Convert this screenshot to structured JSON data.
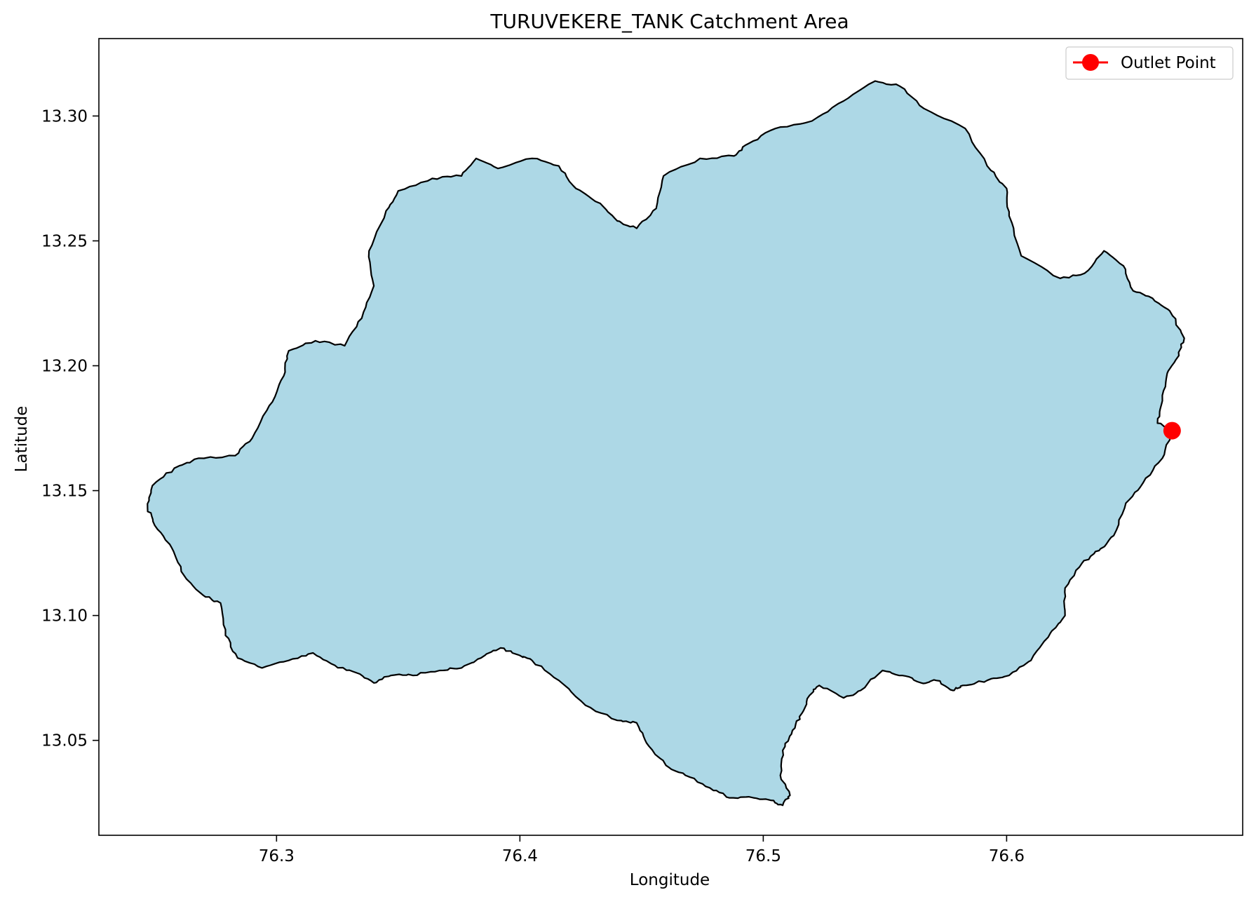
{
  "chart_data": {
    "type": "map",
    "title": "TURUVEKERE_TANK Catchment Area",
    "xlabel": "Longitude",
    "ylabel": "Latitude",
    "xlim": [
      76.227,
      76.697
    ],
    "ylim": [
      13.012,
      13.331
    ],
    "xticks": [
      76.3,
      76.4,
      76.5,
      76.6
    ],
    "xtick_labels": [
      "76.3",
      "76.4",
      "76.5",
      "76.6"
    ],
    "yticks": [
      13.05,
      13.1,
      13.15,
      13.2,
      13.25,
      13.3
    ],
    "ytick_labels": [
      "13.05",
      "13.10",
      "13.15",
      "13.20",
      "13.25",
      "13.30"
    ],
    "grid": false,
    "legend_position": "top-right",
    "legend": [
      {
        "label": "Outlet Point",
        "color": "#ff0000",
        "marker": "circle"
      }
    ],
    "catchment": {
      "fill_color": "#add8e6",
      "edge_color": "#000000",
      "boundary": [
        [
          76.247,
          13.143
        ],
        [
          76.249,
          13.152
        ],
        [
          76.258,
          13.159
        ],
        [
          76.268,
          13.163
        ],
        [
          76.283,
          13.164
        ],
        [
          76.29,
          13.171
        ],
        [
          76.297,
          13.184
        ],
        [
          76.303,
          13.196
        ],
        [
          76.305,
          13.206
        ],
        [
          76.316,
          13.21
        ],
        [
          76.328,
          13.208
        ],
        [
          76.335,
          13.219
        ],
        [
          76.34,
          13.232
        ],
        [
          76.338,
          13.246
        ],
        [
          76.345,
          13.262
        ],
        [
          76.35,
          13.27
        ],
        [
          76.364,
          13.275
        ],
        [
          76.376,
          13.276
        ],
        [
          76.382,
          13.283
        ],
        [
          76.391,
          13.279
        ],
        [
          76.405,
          13.283
        ],
        [
          76.416,
          13.28
        ],
        [
          76.423,
          13.271
        ],
        [
          76.433,
          13.265
        ],
        [
          76.44,
          13.258
        ],
        [
          76.448,
          13.255
        ],
        [
          76.456,
          13.263
        ],
        [
          76.459,
          13.276
        ],
        [
          76.474,
          13.283
        ],
        [
          76.488,
          13.284
        ],
        [
          76.494,
          13.289
        ],
        [
          76.505,
          13.295
        ],
        [
          76.52,
          13.298
        ],
        [
          76.533,
          13.306
        ],
        [
          76.546,
          13.314
        ],
        [
          76.556,
          13.312
        ],
        [
          76.566,
          13.303
        ],
        [
          76.583,
          13.295
        ],
        [
          76.592,
          13.28
        ],
        [
          76.6,
          13.271
        ],
        [
          76.601,
          13.26
        ],
        [
          76.606,
          13.244
        ],
        [
          76.622,
          13.235
        ],
        [
          76.632,
          13.237
        ],
        [
          76.64,
          13.246
        ],
        [
          76.648,
          13.24
        ],
        [
          76.652,
          13.23
        ],
        [
          76.66,
          13.227
        ],
        [
          76.667,
          13.222
        ],
        [
          76.673,
          13.211
        ],
        [
          76.67,
          13.203
        ],
        [
          76.666,
          13.197
        ],
        [
          76.664,
          13.186
        ],
        [
          76.662,
          13.177
        ],
        [
          76.668,
          13.174
        ],
        [
          76.664,
          13.163
        ],
        [
          76.656,
          13.153
        ],
        [
          76.649,
          13.145
        ],
        [
          76.644,
          13.132
        ],
        [
          76.638,
          13.126
        ],
        [
          76.631,
          13.121
        ],
        [
          76.624,
          13.111
        ],
        [
          76.624,
          13.1
        ],
        [
          76.618,
          13.093
        ],
        [
          76.61,
          13.082
        ],
        [
          76.601,
          13.076
        ],
        [
          76.592,
          13.074
        ],
        [
          76.582,
          13.072
        ],
        [
          76.578,
          13.07
        ],
        [
          76.571,
          13.074
        ],
        [
          76.565,
          13.073
        ],
        [
          76.557,
          13.076
        ],
        [
          76.549,
          13.078
        ],
        [
          76.54,
          13.07
        ],
        [
          76.533,
          13.067
        ],
        [
          76.523,
          13.072
        ],
        [
          76.519,
          13.068
        ],
        [
          76.516,
          13.061
        ],
        [
          76.512,
          13.054
        ],
        [
          76.508,
          13.046
        ],
        [
          76.507,
          13.036
        ],
        [
          76.511,
          13.028
        ],
        [
          76.508,
          13.024
        ],
        [
          76.503,
          13.026
        ],
        [
          76.496,
          13.027
        ],
        [
          76.486,
          13.027
        ],
        [
          76.478,
          13.031
        ],
        [
          76.468,
          13.036
        ],
        [
          76.46,
          13.04
        ],
        [
          76.452,
          13.049
        ],
        [
          76.448,
          13.057
        ],
        [
          76.44,
          13.058
        ],
        [
          76.427,
          13.064
        ],
        [
          76.416,
          13.074
        ],
        [
          76.405,
          13.082
        ],
        [
          76.4,
          13.084
        ],
        [
          76.392,
          13.087
        ],
        [
          76.384,
          13.083
        ],
        [
          76.376,
          13.079
        ],
        [
          76.367,
          13.078
        ],
        [
          76.356,
          13.076
        ],
        [
          76.347,
          13.076
        ],
        [
          76.34,
          13.073
        ],
        [
          76.333,
          13.077
        ],
        [
          76.324,
          13.08
        ],
        [
          76.315,
          13.085
        ],
        [
          76.305,
          13.082
        ],
        [
          76.294,
          13.079
        ],
        [
          76.284,
          13.083
        ],
        [
          76.279,
          13.092
        ],
        [
          76.277,
          13.105
        ],
        [
          76.27,
          13.108
        ],
        [
          76.262,
          13.116
        ],
        [
          76.257,
          13.127
        ],
        [
          76.25,
          13.136
        ]
      ]
    },
    "outlet": {
      "name": "Outlet Point",
      "x": 76.668,
      "y": 13.174,
      "color": "#ff0000"
    }
  }
}
